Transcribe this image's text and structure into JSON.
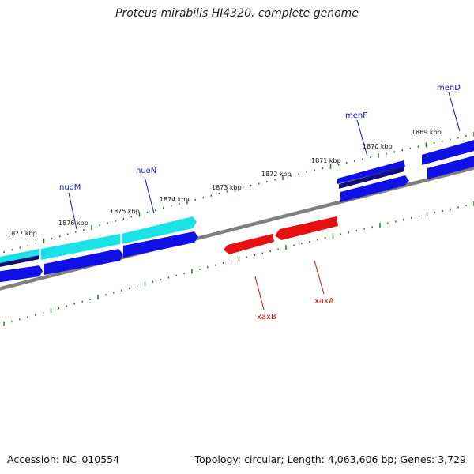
{
  "title": "Proteus mirabilis HI4320, complete genome",
  "footer": {
    "accession": "Accession: NC_010554",
    "summary": "Topology: circular; Length: 4,063,606 bp; Genes: 3,729"
  },
  "colors": {
    "forward_gene": "#1010e6",
    "forward_gene_dark": "#10107a",
    "forward_cyan": "#19e3e6",
    "reverse_gene": "#e61010",
    "backbone": "#808080",
    "ticks": "#1e7a1e",
    "forward_label": "#1010c0",
    "reverse_label": "#d01010"
  },
  "ticks": [
    {
      "label": "1877 kbp"
    },
    {
      "label": "1876 kbp"
    },
    {
      "label": "1875 kbp"
    },
    {
      "label": "1874 kbp"
    },
    {
      "label": "1873 kbp"
    },
    {
      "label": "1872 kbp"
    },
    {
      "label": "1871 kbp"
    },
    {
      "label": "1870 kbp"
    },
    {
      "label": "1869 kbp"
    }
  ],
  "gene_labels": {
    "forward": [
      "nuoM",
      "nuoN",
      "menF",
      "menD"
    ],
    "reverse": [
      "xaxB",
      "xaxA"
    ]
  }
}
